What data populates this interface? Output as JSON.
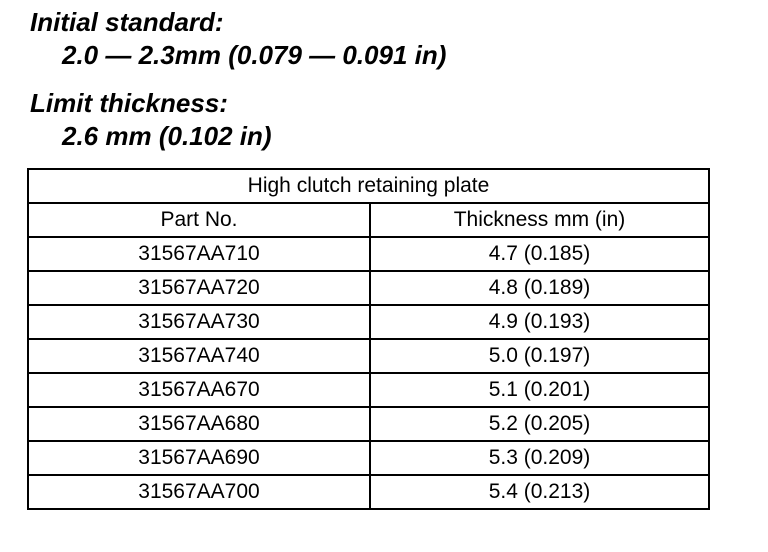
{
  "specs": [
    {
      "label": "Initial standard:",
      "value": "2.0 — 2.3mm (0.079 — 0.091 in)"
    },
    {
      "label": "Limit thickness:",
      "value": "2.6 mm (0.102 in)"
    }
  ],
  "table": {
    "title": "High clutch retaining plate",
    "columns": [
      "Part No.",
      "Thickness mm (in)"
    ],
    "rows": [
      [
        "31567AA710",
        "4.7 (0.185)"
      ],
      [
        "31567AA720",
        "4.8 (0.189)"
      ],
      [
        "31567AA730",
        "4.9 (0.193)"
      ],
      [
        "31567AA740",
        "5.0 (0.197)"
      ],
      [
        "31567AA670",
        "5.1 (0.201)"
      ],
      [
        "31567AA680",
        "5.2 (0.205)"
      ],
      [
        "31567AA690",
        "5.3 (0.209)"
      ],
      [
        "31567AA700",
        "5.4 (0.213)"
      ]
    ]
  }
}
